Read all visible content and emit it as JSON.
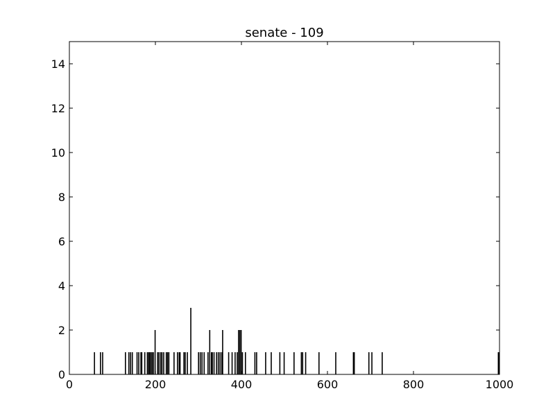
{
  "chart_data": {
    "type": "bar",
    "title": "senate - 109",
    "xlabel": "",
    "ylabel": "",
    "xlim": [
      0,
      1000
    ],
    "ylim": [
      0,
      15
    ],
    "xticks": [
      0,
      200,
      400,
      600,
      800,
      1000
    ],
    "yticks": [
      0,
      2,
      4,
      6,
      8,
      10,
      12,
      14
    ],
    "x_tick_labels": [
      "0",
      "200",
      "400",
      "600",
      "800",
      "1000"
    ],
    "y_tick_labels": [
      "0",
      "2",
      "4",
      "6",
      "8",
      "10",
      "12",
      "14"
    ],
    "grid": false,
    "bar_color": "#000000",
    "x": [
      58,
      72,
      77,
      130,
      138,
      142,
      146,
      157,
      161,
      166,
      168,
      175,
      181,
      184,
      186,
      189,
      192,
      195,
      199,
      205,
      208,
      212,
      215,
      219,
      225,
      228,
      231,
      243,
      251,
      255,
      257,
      266,
      269,
      274,
      282,
      300,
      304,
      308,
      313,
      322,
      326,
      330,
      332,
      336,
      342,
      346,
      350,
      354,
      356,
      370,
      378,
      385,
      390,
      393,
      396,
      399,
      402,
      409,
      431,
      435,
      456,
      469,
      489,
      499,
      522,
      539,
      542,
      549,
      580,
      619,
      660,
      662,
      696,
      703,
      727,
      997,
      999
    ],
    "values": [
      1,
      1,
      1,
      1,
      1,
      1,
      1,
      1,
      1,
      1,
      1,
      1,
      1,
      1,
      1,
      1,
      1,
      1,
      2,
      1,
      1,
      1,
      1,
      1,
      1,
      1,
      1,
      1,
      1,
      1,
      1,
      1,
      1,
      1,
      3,
      1,
      1,
      1,
      1,
      1,
      2,
      1,
      1,
      1,
      1,
      1,
      1,
      1,
      2,
      1,
      1,
      1,
      1,
      2,
      2,
      2,
      1,
      1,
      1,
      1,
      1,
      1,
      1,
      1,
      1,
      1,
      1,
      1,
      1,
      1,
      1,
      1,
      1,
      1,
      1,
      1,
      1
    ]
  }
}
